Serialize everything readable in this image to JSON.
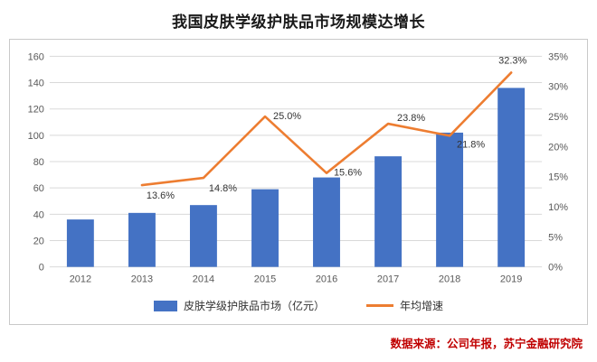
{
  "title": "我国皮肤学级护肤品市场规模达增长",
  "source": "数据来源：公司年报，苏宁金融研究院",
  "colors": {
    "bar": "#4472C4",
    "line": "#ED7D31",
    "grid": "#D9D9D9",
    "source_text": "#C00000"
  },
  "chart_data": {
    "type": "bar",
    "subtype": "bar+line combo, dual axis",
    "categories": [
      "2012",
      "2013",
      "2014",
      "2015",
      "2016",
      "2017",
      "2018",
      "2019"
    ],
    "series": [
      {
        "name": "皮肤学级护肤品市场（亿元）",
        "type": "bar",
        "axis": "left",
        "values": [
          36,
          41,
          47,
          59,
          68,
          84,
          102,
          136
        ]
      },
      {
        "name": "年均增速",
        "type": "line",
        "axis": "right",
        "values": [
          null,
          13.6,
          14.8,
          25.0,
          15.6,
          23.8,
          21.8,
          32.3
        ],
        "labels": [
          "",
          "13.6%",
          "14.8%",
          "25.0%",
          "15.6%",
          "23.8%",
          "21.8%",
          "32.3%"
        ],
        "label_offsets": [
          null,
          [
            5,
            15
          ],
          [
            6,
            15
          ],
          [
            9,
            3
          ],
          [
            8,
            3
          ],
          [
            10,
            -3
          ],
          [
            8,
            13
          ],
          [
            -14,
            -10
          ]
        ]
      }
    ],
    "left_axis": {
      "min": 0,
      "max": 160,
      "step": 20,
      "suffix": ""
    },
    "right_axis": {
      "min": 0,
      "max": 35,
      "step": 5,
      "suffix": "%"
    },
    "grid": true,
    "legend_position": "bottom"
  }
}
